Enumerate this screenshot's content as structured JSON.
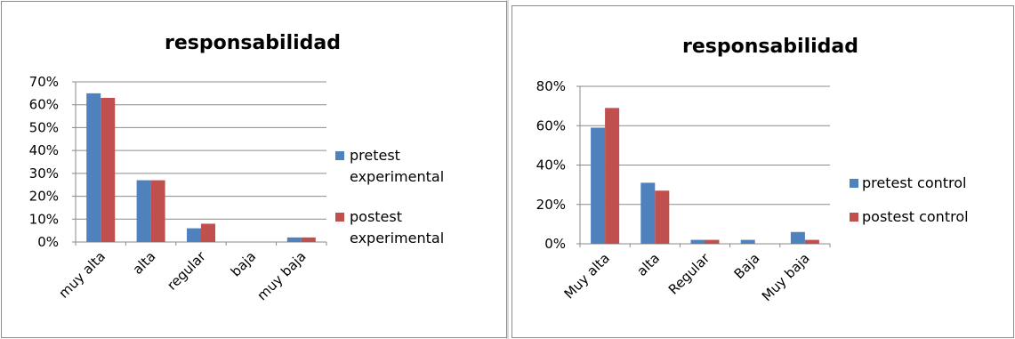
{
  "chart_data": [
    {
      "type": "bar",
      "title": "responsabilidad",
      "categories": [
        "muy alta",
        "alta",
        "regular",
        "baja",
        "muy baja"
      ],
      "series": [
        {
          "name": "pretest experimental",
          "color": "#4f81bd",
          "values": [
            0.65,
            0.27,
            0.06,
            0.0,
            0.02
          ]
        },
        {
          "name": "postest experimental",
          "color": "#c0504d",
          "values": [
            0.63,
            0.27,
            0.08,
            0.0,
            0.02
          ]
        }
      ],
      "yticks": [
        "0%",
        "10%",
        "20%",
        "30%",
        "40%",
        "50%",
        "60%",
        "70%"
      ],
      "ylim": [
        0,
        0.7
      ],
      "grid": true,
      "legend": "right"
    },
    {
      "type": "bar",
      "title": "responsabilidad",
      "categories": [
        "Muy alta",
        "alta",
        "Regular",
        "Baja",
        "Muy baja"
      ],
      "series": [
        {
          "name": "pretest control",
          "color": "#4f81bd",
          "values": [
            0.59,
            0.31,
            0.02,
            0.02,
            0.06
          ]
        },
        {
          "name": "postest control",
          "color": "#c0504d",
          "values": [
            0.69,
            0.27,
            0.02,
            0.0,
            0.02
          ]
        }
      ],
      "yticks": [
        "0%",
        "20%",
        "40%",
        "60%",
        "80%"
      ],
      "ylim": [
        0,
        0.8
      ],
      "grid": true,
      "legend": "right"
    }
  ]
}
